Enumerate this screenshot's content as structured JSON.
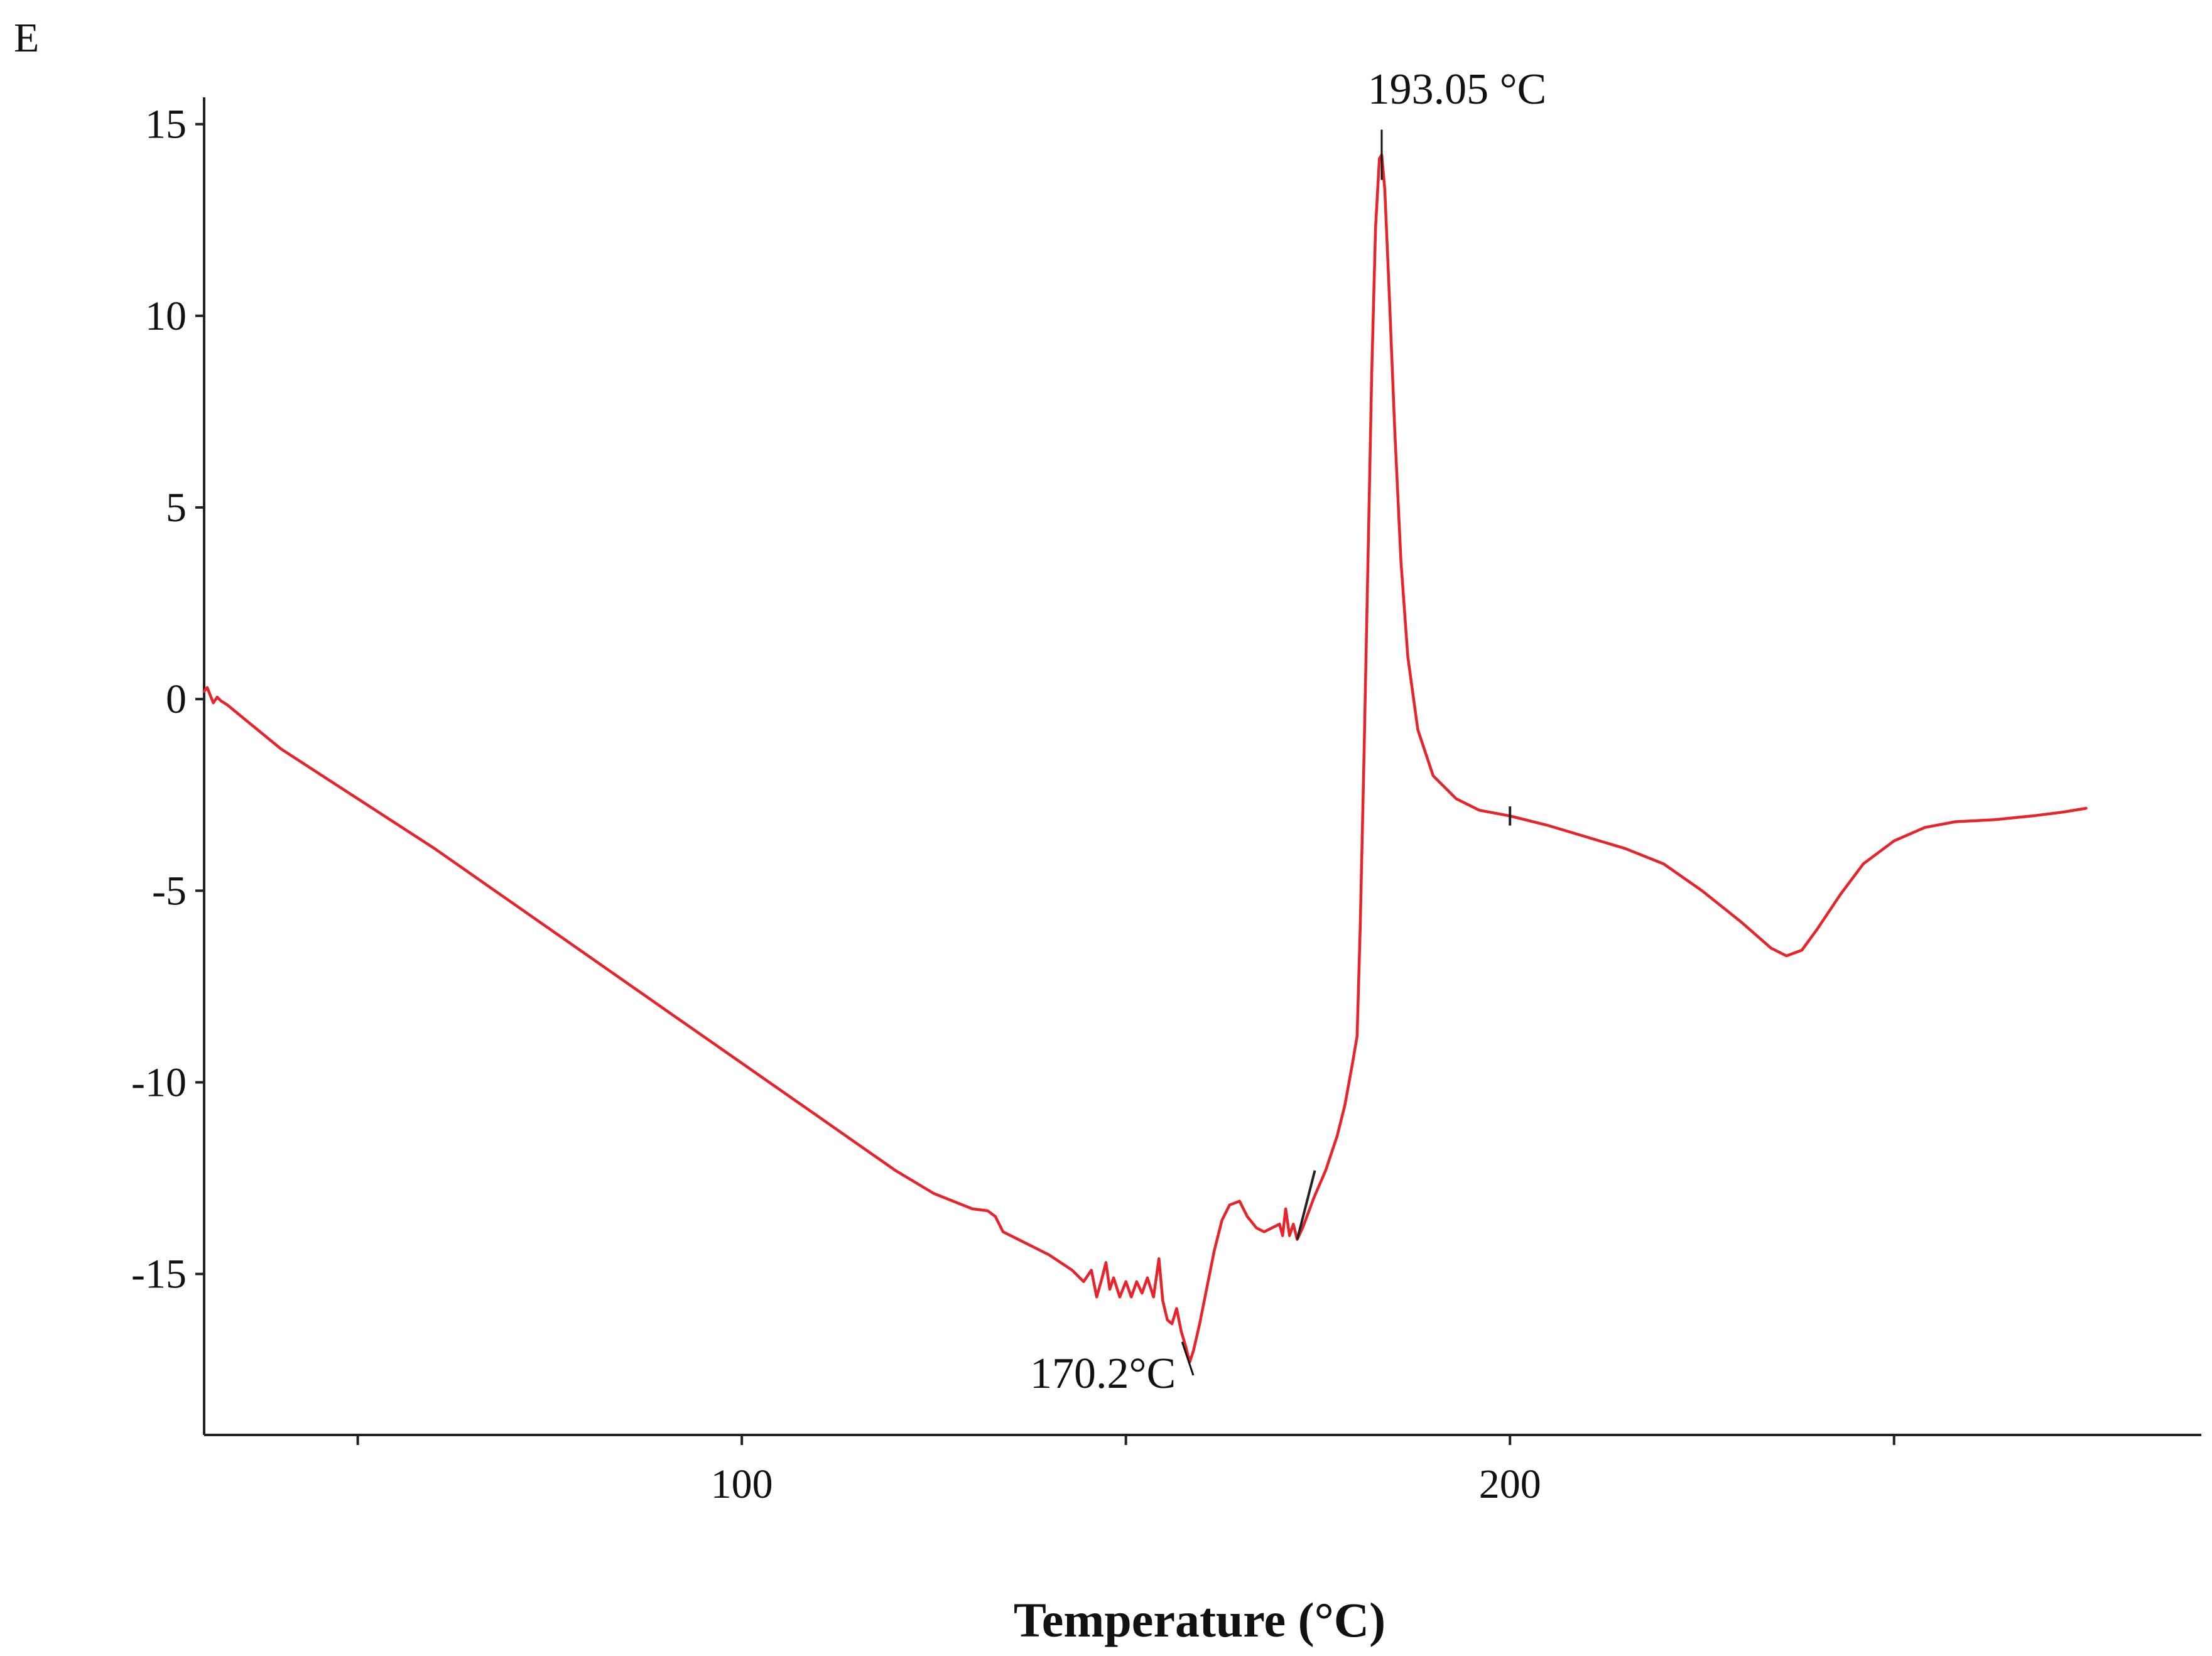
{
  "chart_data": {
    "type": "line",
    "panel_label": "E",
    "title": "",
    "xlabel": "Temperature  (°C)",
    "ylabel": "",
    "xlim": [
      30,
      290
    ],
    "ylim": [
      -19.2,
      15.7
    ],
    "x_ticks": [
      50,
      100,
      150,
      200,
      250
    ],
    "x_tick_labels": [
      "",
      "100",
      "",
      "200",
      ""
    ],
    "y_ticks": [
      15,
      10,
      5,
      0,
      -5,
      -10,
      -15
    ],
    "y_tick_labels": [
      "15",
      "10",
      "5",
      "0",
      "-5",
      "-10",
      "-15"
    ],
    "grid": false,
    "legend": "none",
    "colors": {
      "series": "#e8232a",
      "axes": "#222222",
      "annotation": "#111111"
    },
    "series": [
      {
        "name": "",
        "points": [
          [
            30.0,
            0.2
          ],
          [
            30.4,
            0.3
          ],
          [
            30.8,
            0.1
          ],
          [
            31.2,
            -0.1
          ],
          [
            31.7,
            0.05
          ],
          [
            32.2,
            -0.05
          ],
          [
            33,
            -0.15
          ],
          [
            40,
            -1.3
          ],
          [
            50,
            -2.6
          ],
          [
            60,
            -3.9
          ],
          [
            70,
            -5.3
          ],
          [
            80,
            -6.7
          ],
          [
            90,
            -8.1
          ],
          [
            100,
            -9.5
          ],
          [
            110,
            -10.9
          ],
          [
            120,
            -12.3
          ],
          [
            125,
            -12.9
          ],
          [
            130,
            -13.3
          ],
          [
            132,
            -13.35
          ],
          [
            133,
            -13.5
          ],
          [
            134,
            -13.9
          ],
          [
            136,
            -14.1
          ],
          [
            140,
            -14.5
          ],
          [
            143,
            -14.9
          ],
          [
            144.5,
            -15.2
          ],
          [
            145.5,
            -14.9
          ],
          [
            146.2,
            -15.6
          ],
          [
            146.9,
            -15.1
          ],
          [
            147.4,
            -14.7
          ],
          [
            147.9,
            -15.4
          ],
          [
            148.4,
            -15.1
          ],
          [
            149.2,
            -15.6
          ],
          [
            150.0,
            -15.2
          ],
          [
            150.7,
            -15.6
          ],
          [
            151.4,
            -15.2
          ],
          [
            152.1,
            -15.5
          ],
          [
            152.8,
            -15.1
          ],
          [
            153.6,
            -15.6
          ],
          [
            154.3,
            -14.6
          ],
          [
            154.8,
            -15.7
          ],
          [
            155.4,
            -16.2
          ],
          [
            156.0,
            -16.3
          ],
          [
            156.6,
            -15.9
          ],
          [
            157.2,
            -16.5
          ],
          [
            157.8,
            -16.9
          ],
          [
            158.3,
            -17.3
          ],
          [
            158.8,
            -17.0
          ],
          [
            159.6,
            -16.3
          ],
          [
            160.5,
            -15.4
          ],
          [
            161.5,
            -14.4
          ],
          [
            162.5,
            -13.6
          ],
          [
            163.5,
            -13.2
          ],
          [
            164.8,
            -13.1
          ],
          [
            165.8,
            -13.5
          ],
          [
            167.0,
            -13.8
          ],
          [
            168.0,
            -13.9
          ],
          [
            169.0,
            -13.8
          ],
          [
            170.0,
            -13.7
          ],
          [
            170.4,
            -14.0
          ],
          [
            170.8,
            -13.3
          ],
          [
            171.3,
            -14.0
          ],
          [
            171.8,
            -13.7
          ],
          [
            172.3,
            -14.1
          ],
          [
            173.0,
            -13.8
          ],
          [
            174.5,
            -13.0
          ],
          [
            176.0,
            -12.3
          ],
          [
            177.5,
            -11.4
          ],
          [
            178.5,
            -10.6
          ],
          [
            179.5,
            -9.5
          ],
          [
            180.1,
            -8.8
          ],
          [
            180.5,
            -6.0
          ],
          [
            181.0,
            -1.5
          ],
          [
            181.5,
            3.5
          ],
          [
            182.0,
            8.5
          ],
          [
            182.5,
            12.3
          ],
          [
            183.0,
            14.1
          ],
          [
            183.3,
            14.2
          ],
          [
            183.7,
            13.3
          ],
          [
            184.3,
            10.5
          ],
          [
            185.0,
            7.0
          ],
          [
            185.8,
            3.6
          ],
          [
            186.7,
            1.1
          ],
          [
            188.0,
            -0.8
          ],
          [
            190.0,
            -2.0
          ],
          [
            193.0,
            -2.6
          ],
          [
            196.0,
            -2.9
          ],
          [
            200,
            -3.05
          ],
          [
            205,
            -3.3
          ],
          [
            210,
            -3.6
          ],
          [
            215,
            -3.9
          ],
          [
            220,
            -4.3
          ],
          [
            225,
            -5.0
          ],
          [
            230,
            -5.8
          ],
          [
            234,
            -6.5
          ],
          [
            236,
            -6.7
          ],
          [
            238,
            -6.55
          ],
          [
            240,
            -6.0
          ],
          [
            243,
            -5.1
          ],
          [
            246,
            -4.3
          ],
          [
            250,
            -3.7
          ],
          [
            254,
            -3.35
          ],
          [
            258,
            -3.2
          ],
          [
            263,
            -3.15
          ],
          [
            268,
            -3.05
          ],
          [
            272,
            -2.95
          ],
          [
            275,
            -2.85
          ]
        ]
      }
    ],
    "annotations": [
      {
        "label": "193.05 °C",
        "x": 183.3,
        "y": 14.2
      },
      {
        "label": "170.2°C",
        "x": 158.3,
        "y": -17.0
      }
    ]
  }
}
